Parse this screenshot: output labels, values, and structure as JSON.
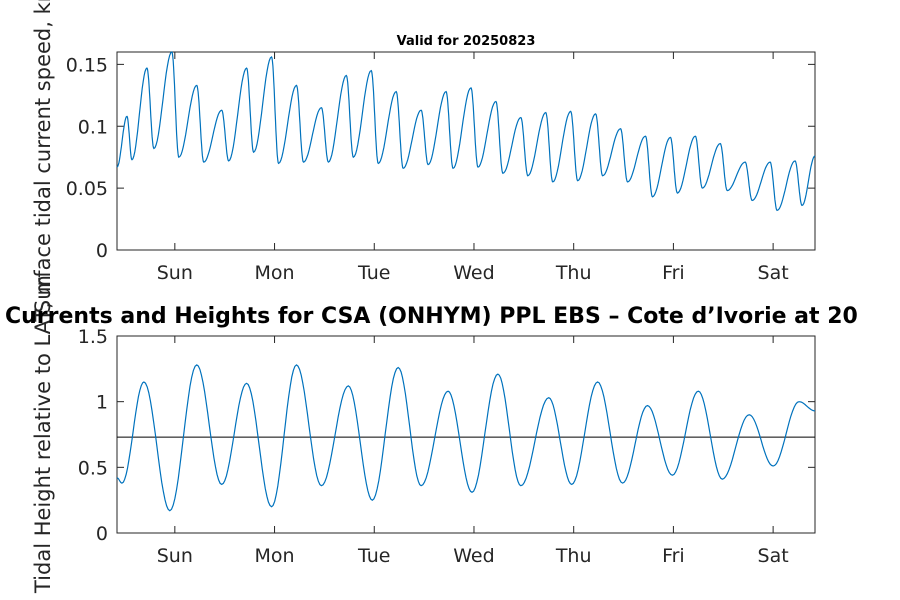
{
  "chart_data": [
    {
      "type": "line",
      "title": "Valid for 20250823",
      "xlabel": "",
      "ylabel": "Surface tidal current speed, kn",
      "ylim": [
        0,
        0.16
      ],
      "yticks": [
        0,
        0.05,
        0.1,
        0.15
      ],
      "ytick_labels": [
        "0",
        "0.05",
        "0.1",
        "0.15"
      ],
      "xlim": [
        0,
        7
      ],
      "xticks": [
        0.58,
        1.58,
        2.58,
        3.58,
        4.58,
        5.58,
        6.58
      ],
      "xtick_labels": [
        "Sun",
        "Mon",
        "Tue",
        "Wed",
        "Thu",
        "Fri",
        "Sat"
      ],
      "line_color": "#0072BD",
      "series": [
        {
          "x": [
            0.0,
            0.1,
            0.15,
            0.3,
            0.37,
            0.55,
            0.62,
            0.8,
            0.87,
            1.05,
            1.12,
            1.3,
            1.37,
            1.55,
            1.62,
            1.8,
            1.87,
            2.05,
            2.12,
            2.3,
            2.37,
            2.55,
            2.62,
            2.8,
            2.87,
            3.05,
            3.12,
            3.3,
            3.37,
            3.55,
            3.62,
            3.8,
            3.87,
            4.05,
            4.12,
            4.3,
            4.37,
            4.55,
            4.62,
            4.8,
            4.87,
            5.05,
            5.12,
            5.3,
            5.37,
            5.55,
            5.62,
            5.8,
            5.87,
            6.05,
            6.12,
            6.3,
            6.37,
            6.55,
            6.62,
            6.8,
            6.87,
            7.0
          ],
          "y": [
            0.067,
            0.108,
            0.073,
            0.147,
            0.082,
            0.16,
            0.075,
            0.133,
            0.071,
            0.113,
            0.072,
            0.147,
            0.079,
            0.156,
            0.07,
            0.133,
            0.071,
            0.115,
            0.071,
            0.141,
            0.075,
            0.145,
            0.07,
            0.128,
            0.066,
            0.113,
            0.069,
            0.128,
            0.066,
            0.131,
            0.067,
            0.12,
            0.062,
            0.107,
            0.06,
            0.111,
            0.055,
            0.112,
            0.056,
            0.11,
            0.06,
            0.098,
            0.055,
            0.092,
            0.043,
            0.091,
            0.046,
            0.092,
            0.05,
            0.086,
            0.048,
            0.071,
            0.04,
            0.071,
            0.032,
            0.072,
            0.036,
            0.076
          ]
        }
      ]
    },
    {
      "type": "line",
      "title": "Currents and Heights for CSA (ONHYM) PPL EBS  – Cote d’Ivorie at 20",
      "xlabel": "",
      "ylabel": "Tidal Height relative to LAT, m",
      "ylim": [
        0,
        1.5
      ],
      "yticks": [
        0,
        0.5,
        1,
        1.5
      ],
      "ytick_labels": [
        "0",
        "0.5",
        "1",
        "1.5"
      ],
      "xlim": [
        0,
        7
      ],
      "xticks": [
        0.58,
        1.58,
        2.58,
        3.58,
        4.58,
        5.58,
        6.58
      ],
      "xtick_labels": [
        "Sun",
        "Mon",
        "Tue",
        "Wed",
        "Thu",
        "Fri",
        "Sat"
      ],
      "reference_line": 0.73,
      "line_color": "#0072BD",
      "series": [
        {
          "x": [
            0.0,
            0.05,
            0.27,
            0.53,
            0.8,
            1.05,
            1.3,
            1.55,
            1.8,
            2.05,
            2.32,
            2.56,
            2.82,
            3.05,
            3.32,
            3.56,
            3.82,
            4.05,
            4.33,
            4.56,
            4.82,
            5.07,
            5.32,
            5.57,
            5.83,
            6.07,
            6.34,
            6.58,
            6.84,
            7.0
          ],
          "y": [
            0.42,
            0.38,
            1.15,
            0.17,
            1.28,
            0.37,
            1.14,
            0.2,
            1.28,
            0.36,
            1.12,
            0.25,
            1.26,
            0.36,
            1.08,
            0.31,
            1.21,
            0.36,
            1.03,
            0.37,
            1.15,
            0.38,
            0.97,
            0.44,
            1.08,
            0.41,
            0.9,
            0.51,
            1.0,
            0.93
          ]
        }
      ]
    }
  ]
}
